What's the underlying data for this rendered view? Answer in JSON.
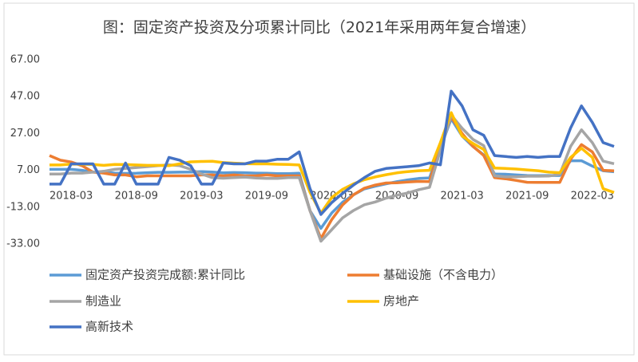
{
  "chart_data": {
    "type": "line",
    "title": "图：固定资产投资及分项累计同比（2021年采用两年复合增速）",
    "categories": [
      null,
      null,
      "2018-03",
      null,
      null,
      null,
      null,
      null,
      "2018-09",
      null,
      null,
      null,
      null,
      null,
      "2019-03",
      null,
      null,
      null,
      null,
      null,
      "2019-09",
      null,
      null,
      null,
      null,
      null,
      "2020-03",
      null,
      null,
      null,
      null,
      null,
      "2020-09",
      null,
      null,
      null,
      null,
      null,
      "2021-03",
      null,
      null,
      null,
      null,
      null,
      "2021-09",
      null,
      null,
      null,
      null,
      null,
      "2022-03",
      null,
      null
    ],
    "series": [
      {
        "name": "固定资产投资完成额:累计同比",
        "color": "#5b9bd5",
        "values": [
          7.5,
          7.5,
          7.5,
          7,
          6.1,
          6,
          5.5,
          5.3,
          5.4,
          5.7,
          5.9,
          5.9,
          6,
          6.1,
          6.3,
          6.1,
          5.6,
          5.8,
          5.7,
          5.5,
          5.4,
          5.2,
          5.2,
          5.4,
          -15,
          -24.5,
          -16.1,
          -10.3,
          -6.3,
          -3.1,
          -1.6,
          -0.3,
          0.8,
          1.8,
          2.6,
          2.9,
          19,
          35,
          25.6,
          19.9,
          15.4,
          5,
          4.9,
          4.5,
          4.2,
          4.1,
          4.2,
          4.2,
          12.2,
          12.2,
          9.3,
          6.8,
          6.2
        ]
      },
      {
        "name": "基础设施（不含电力）",
        "color": "#ed7d31",
        "values": [
          15,
          12.5,
          11.5,
          9.5,
          6,
          5.5,
          4.5,
          4.5,
          3.5,
          4,
          4,
          4,
          4,
          4,
          4.5,
          4.5,
          4,
          4.5,
          4,
          4,
          4.5,
          4,
          4,
          4,
          -15,
          -30,
          -19.7,
          -11.8,
          -6.3,
          -2.7,
          -1,
          0.1,
          0.2,
          0.7,
          1,
          0.9,
          20,
          36,
          27,
          20,
          15,
          3,
          2.4,
          1.5,
          0.5,
          0.4,
          0.4,
          0.4,
          13,
          21,
          17,
          7,
          6.7
        ]
      },
      {
        "name": "制造业",
        "color": "#a5a5a5",
        "values": [
          5,
          5,
          5.5,
          5.5,
          6,
          6.5,
          7.5,
          8,
          8.5,
          9,
          9.5,
          10,
          9.5,
          7.5,
          5,
          3,
          2.7,
          3,
          3.3,
          2.8,
          2.6,
          2.6,
          3,
          3.1,
          -15,
          -31.5,
          -25.2,
          -18.8,
          -14.8,
          -11.7,
          -10.2,
          -8.1,
          -6.5,
          -5.3,
          -3.5,
          -2.2,
          18,
          37,
          29.8,
          23.8,
          20.4,
          4,
          3.5,
          3.5,
          3.8,
          3.8,
          3.9,
          4.8,
          20,
          29,
          22,
          12,
          10.6
        ]
      },
      {
        "name": "房地产",
        "color": "#ffc000",
        "values": [
          9.9,
          9.9,
          10.4,
          10.3,
          10.2,
          9.7,
          10.2,
          10.1,
          9.9,
          9.7,
          9.7,
          9.5,
          10.5,
          11.6,
          11.8,
          11.9,
          11.2,
          10.9,
          10.6,
          10.5,
          10.5,
          10.3,
          10.2,
          9.9,
          -5,
          -16.3,
          -7.7,
          -3.3,
          -0.3,
          1.9,
          3.4,
          4.6,
          5.6,
          6.3,
          6.8,
          7,
          22,
          38.3,
          25.6,
          21.6,
          18.3,
          8.2,
          8,
          7.7,
          7.2,
          6.8,
          6,
          5.7,
          14,
          19,
          14,
          -3,
          -5
        ]
      },
      {
        "name": "高新技术",
        "color": "#4472c4",
        "values": [
          -0.5,
          -0.5,
          10.5,
          10.5,
          10.5,
          -0.5,
          -0.5,
          11,
          -0.5,
          -0.5,
          -0.5,
          14,
          12.5,
          9.5,
          -0.5,
          -0.5,
          11,
          10.5,
          10.5,
          12,
          12,
          13,
          13,
          17,
          -3,
          -17,
          -10.5,
          -5.5,
          -1,
          3,
          6.5,
          8,
          8.5,
          9,
          9.5,
          11,
          10,
          50,
          42,
          29,
          26,
          15,
          14.5,
          14,
          14.5,
          14,
          14.5,
          14.5,
          30,
          42,
          33,
          22,
          20
        ]
      }
    ],
    "ylim": [
      -33,
      67
    ],
    "yticks": [
      {
        "value": -33,
        "label": "-33.00"
      },
      {
        "value": -13,
        "label": "-13.00"
      },
      {
        "value": 7,
        "label": "7.00"
      },
      {
        "value": 27,
        "label": "27.00"
      },
      {
        "value": 47,
        "label": "47.00"
      },
      {
        "value": 67,
        "label": "67.00"
      }
    ],
    "grid": false
  }
}
